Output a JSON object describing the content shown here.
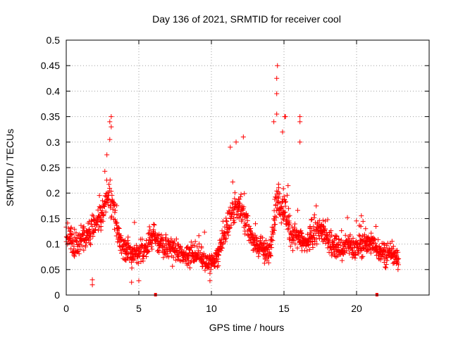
{
  "chart_data": {
    "type": "scatter",
    "title": "Day 136 of 2021, SRMTID for receiver cool",
    "xlabel": "GPS time / hours",
    "ylabel": "SRMTID / TECUs",
    "xlim": [
      0,
      25
    ],
    "ylim": [
      0,
      0.5
    ],
    "x_ticks": [
      0,
      5,
      10,
      15,
      20
    ],
    "x_tick_labels": [
      "0",
      "5",
      "10",
      "15",
      "20"
    ],
    "y_ticks": [
      0,
      0.05,
      0.1,
      0.15,
      0.2,
      0.25,
      0.3,
      0.35,
      0.4,
      0.45,
      0.5
    ],
    "y_tick_labels": [
      "0",
      "0.05",
      "0.1",
      "0.15",
      "0.2",
      "0.25",
      "0.3",
      "0.35",
      "0.4",
      "0.45",
      "0.5"
    ],
    "grid": true,
    "marker": "+",
    "color": "#ff0000",
    "series": [
      {
        "name": "SRMTID",
        "profile_x": [
          0,
          0.3,
          0.6,
          1.0,
          1.5,
          2.0,
          2.5,
          3.0,
          3.3,
          3.6,
          4.0,
          4.5,
          5.0,
          5.5,
          6.0,
          6.5,
          7.0,
          7.5,
          8.0,
          8.5,
          9.0,
          9.5,
          10.0,
          10.5,
          11.0,
          11.5,
          12.0,
          12.5,
          13.0,
          13.5,
          14.0,
          14.5,
          15.0,
          15.5,
          16.0,
          16.5,
          17.0,
          17.5,
          18.0,
          18.5,
          19.0,
          19.5,
          20.0,
          20.5,
          21.0,
          21.5,
          22.0,
          22.5,
          22.9
        ],
        "profile_y": [
          0.12,
          0.11,
          0.09,
          0.11,
          0.12,
          0.14,
          0.17,
          0.2,
          0.17,
          0.12,
          0.09,
          0.08,
          0.08,
          0.09,
          0.12,
          0.1,
          0.09,
          0.09,
          0.08,
          0.08,
          0.08,
          0.07,
          0.06,
          0.08,
          0.13,
          0.17,
          0.18,
          0.13,
          0.1,
          0.09,
          0.08,
          0.19,
          0.17,
          0.12,
          0.11,
          0.1,
          0.12,
          0.13,
          0.11,
          0.1,
          0.09,
          0.1,
          0.09,
          0.1,
          0.1,
          0.09,
          0.08,
          0.08,
          0.06
        ],
        "spread": 0.025,
        "peaks": [
          {
            "x": 3.1,
            "y": 0.35
          },
          {
            "x": 3.0,
            "y": 0.34
          },
          {
            "x": 3.1,
            "y": 0.33
          },
          {
            "x": 3.0,
            "y": 0.305
          },
          {
            "x": 2.8,
            "y": 0.275
          },
          {
            "x": 12.2,
            "y": 0.31
          },
          {
            "x": 11.3,
            "y": 0.29
          },
          {
            "x": 11.7,
            "y": 0.3
          },
          {
            "x": 14.55,
            "y": 0.45
          },
          {
            "x": 14.5,
            "y": 0.425
          },
          {
            "x": 14.5,
            "y": 0.395
          },
          {
            "x": 14.5,
            "y": 0.355
          },
          {
            "x": 15.05,
            "y": 0.35
          },
          {
            "x": 15.1,
            "y": 0.35
          },
          {
            "x": 16.1,
            "y": 0.35
          },
          {
            "x": 16.1,
            "y": 0.34
          },
          {
            "x": 16.1,
            "y": 0.3
          },
          {
            "x": 14.3,
            "y": 0.34
          },
          {
            "x": 14.9,
            "y": 0.32
          }
        ],
        "lows": [
          {
            "x": 1.8,
            "y": 0.02
          },
          {
            "x": 1.8,
            "y": 0.03
          },
          {
            "x": 4.5,
            "y": 0.025
          },
          {
            "x": 5.0,
            "y": 0.028
          },
          {
            "x": 9.9,
            "y": 0.028
          }
        ]
      }
    ],
    "axis_markers": [
      {
        "x": 6.15,
        "y": 0
      },
      {
        "x": 21.4,
        "y": 0
      }
    ]
  }
}
